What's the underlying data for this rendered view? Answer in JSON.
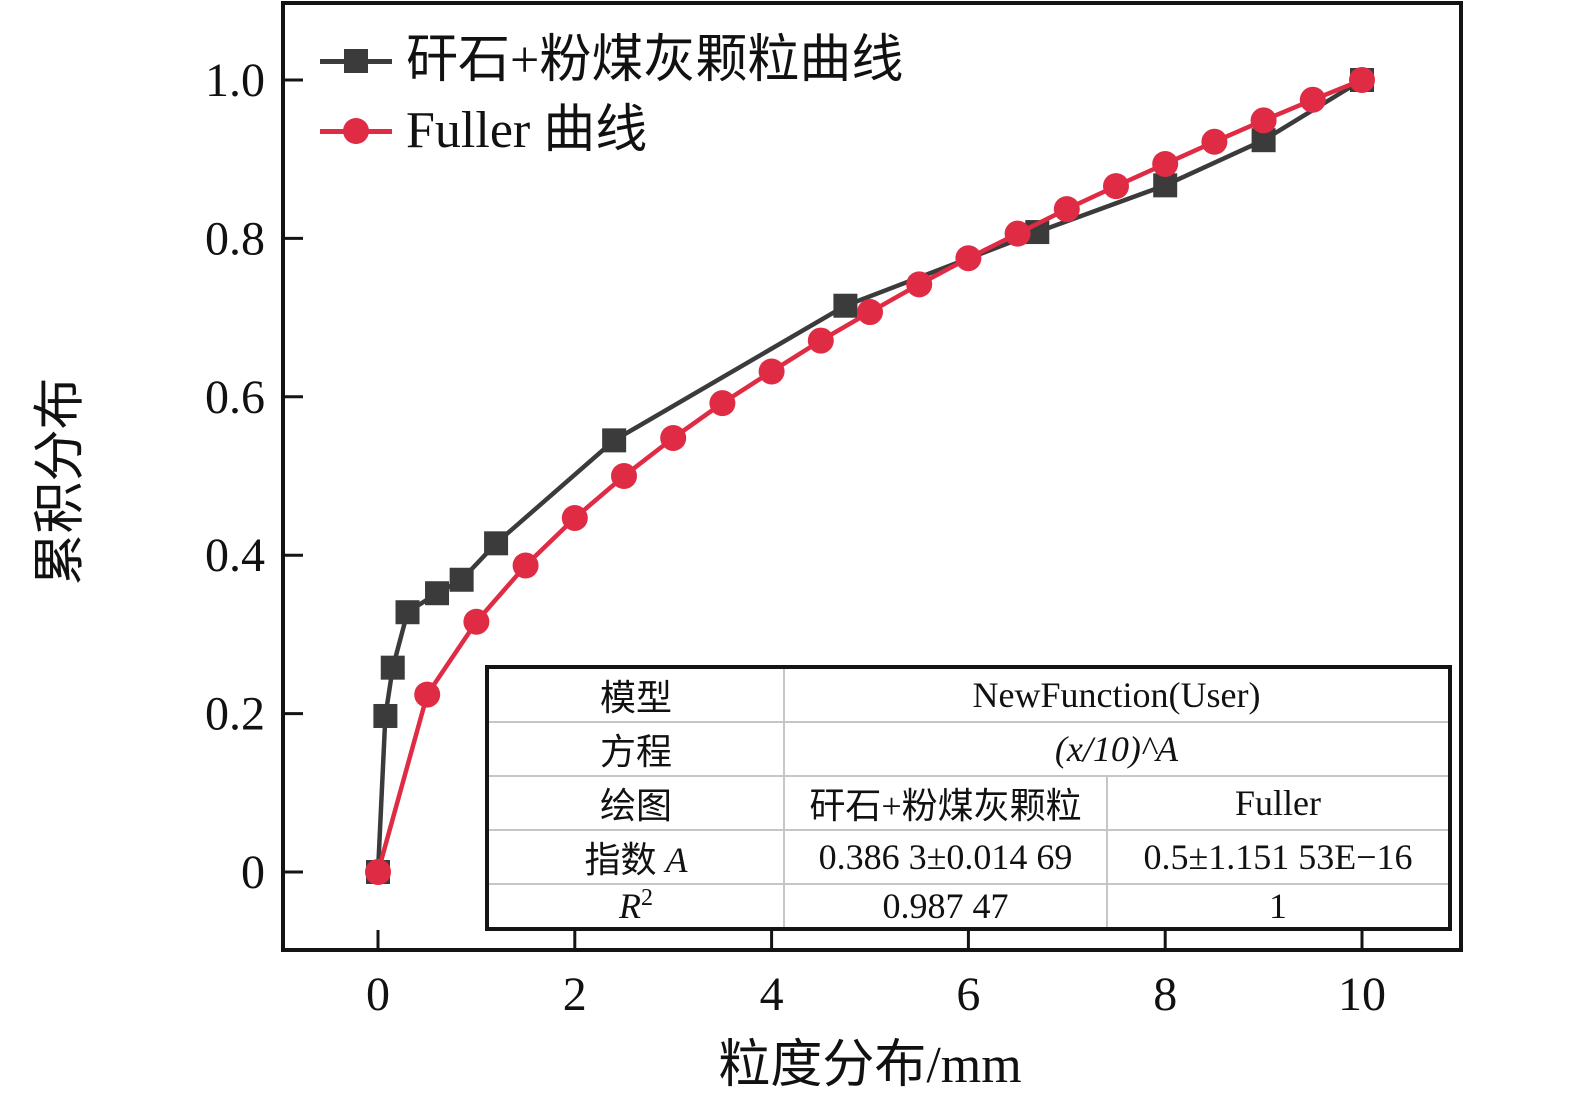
{
  "figure": {
    "background": "#ffffff"
  },
  "axes": {
    "x_title": "粒度分布/mm",
    "y_title": "累积分布",
    "x_tick_labels": [
      "0",
      "2",
      "4",
      "6",
      "8",
      "10"
    ],
    "y_tick_labels": [
      "0",
      "0.2",
      "0.4",
      "0.6",
      "0.8",
      "1.0"
    ]
  },
  "legend": {
    "items": [
      {
        "label": "矸石+粉煤灰颗粒曲线",
        "marker": "square",
        "color": "#3b3b3b"
      },
      {
        "label": "Fuller 曲线",
        "marker": "circle",
        "color": "#e02b44"
      }
    ]
  },
  "table": {
    "model_label": "模型",
    "model_value": "NewFunction(User)",
    "equation_label": "方程",
    "equation_value": "(x/10)^A",
    "plot_label": "绘图",
    "plot_col1": "矸石+粉煤灰颗粒",
    "plot_col2": "Fuller",
    "exponent_label_prefix": "指数 ",
    "exponent_label_symbol": "A",
    "exponent_col1": "0.386 3±0.014 69",
    "exponent_col2": "0.5±1.151 53E−16",
    "r2_base": "R",
    "r2_sup": "2",
    "r2_col1": "0.987 47",
    "r2_col2": "1"
  },
  "chart_data": {
    "type": "line",
    "title": "",
    "xlabel": "粒度分布/mm",
    "ylabel": "累积分布",
    "xlim": [
      -0.97,
      11.05
    ],
    "ylim": [
      -0.1,
      1.1
    ],
    "x_ticks": [
      0,
      2,
      4,
      6,
      8,
      10
    ],
    "y_ticks": [
      0,
      0.2,
      0.4,
      0.6,
      0.8,
      1.0
    ],
    "grid": false,
    "legend_position": "inside top-left",
    "series": [
      {
        "name": "矸石+粉煤灰颗粒曲线",
        "color": "#3b3b3b",
        "marker": "square",
        "x": [
          0,
          0.075,
          0.15,
          0.3,
          0.6,
          0.85,
          1.2,
          2.4,
          4.75,
          6.7,
          8,
          9,
          10
        ],
        "y": [
          0,
          0.197,
          0.258,
          0.328,
          0.352,
          0.369,
          0.415,
          0.545,
          0.715,
          0.808,
          0.867,
          0.924,
          1.0
        ]
      },
      {
        "name": "Fuller 曲线",
        "color": "#e02b44",
        "marker": "circle",
        "x": [
          0,
          0.5,
          1,
          1.5,
          2,
          2.5,
          3,
          3.5,
          4,
          4.5,
          5,
          5.5,
          6,
          6.5,
          7,
          7.5,
          8,
          8.5,
          9,
          9.5,
          10
        ],
        "y": [
          0,
          0.224,
          0.316,
          0.387,
          0.447,
          0.5,
          0.548,
          0.592,
          0.632,
          0.671,
          0.707,
          0.742,
          0.775,
          0.806,
          0.837,
          0.866,
          0.894,
          0.922,
          0.949,
          0.975,
          1.0
        ]
      }
    ]
  }
}
